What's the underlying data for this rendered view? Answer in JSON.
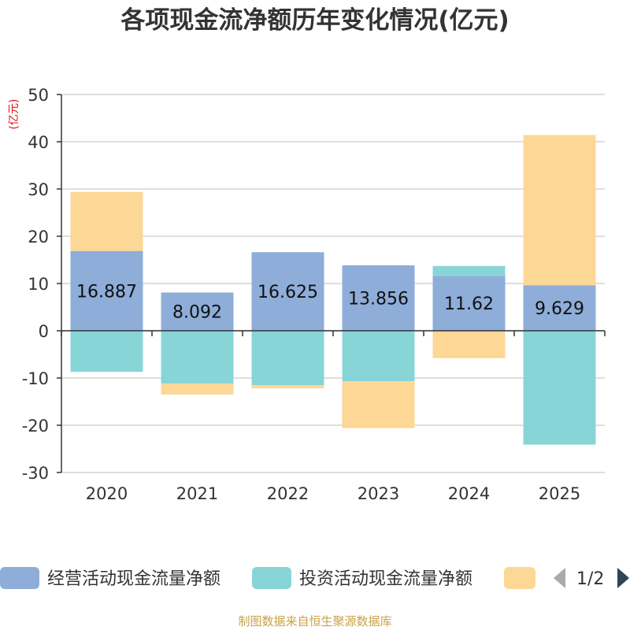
{
  "chart_data": {
    "type": "bar",
    "title": "各项现金流净额历年变化情况(亿元)",
    "unit_label": "(亿元)",
    "categories": [
      "2020",
      "2021",
      "2022",
      "2023",
      "2024",
      "2025"
    ],
    "ylim": [
      -30,
      50
    ],
    "yticks": [
      50,
      40,
      30,
      20,
      10,
      0,
      -10,
      -20,
      -30
    ],
    "grid": true,
    "stacked": true,
    "series": [
      {
        "name": "经营活动现金流量净额",
        "color": "#8eadd9",
        "values": [
          16.887,
          8.092,
          16.625,
          13.856,
          11.62,
          9.629
        ],
        "labels": [
          "16.887",
          "8.092",
          "16.625",
          "13.856",
          "11.62",
          "9.629"
        ]
      },
      {
        "name": "投资活动现金流量净额",
        "color": "#88d5d8",
        "values": [
          -8.7,
          -11.2,
          -11.5,
          -10.7,
          2.1,
          -24.1
        ]
      },
      {
        "name": "",
        "color": "#fdd796",
        "values": [
          12.5,
          -2.3,
          -0.7,
          -9.9,
          -5.8,
          31.8
        ]
      }
    ],
    "legend": {
      "position": "bottom",
      "page": "1/2"
    }
  },
  "footer": {
    "source": "制图数据来自恒生聚源数据库"
  }
}
